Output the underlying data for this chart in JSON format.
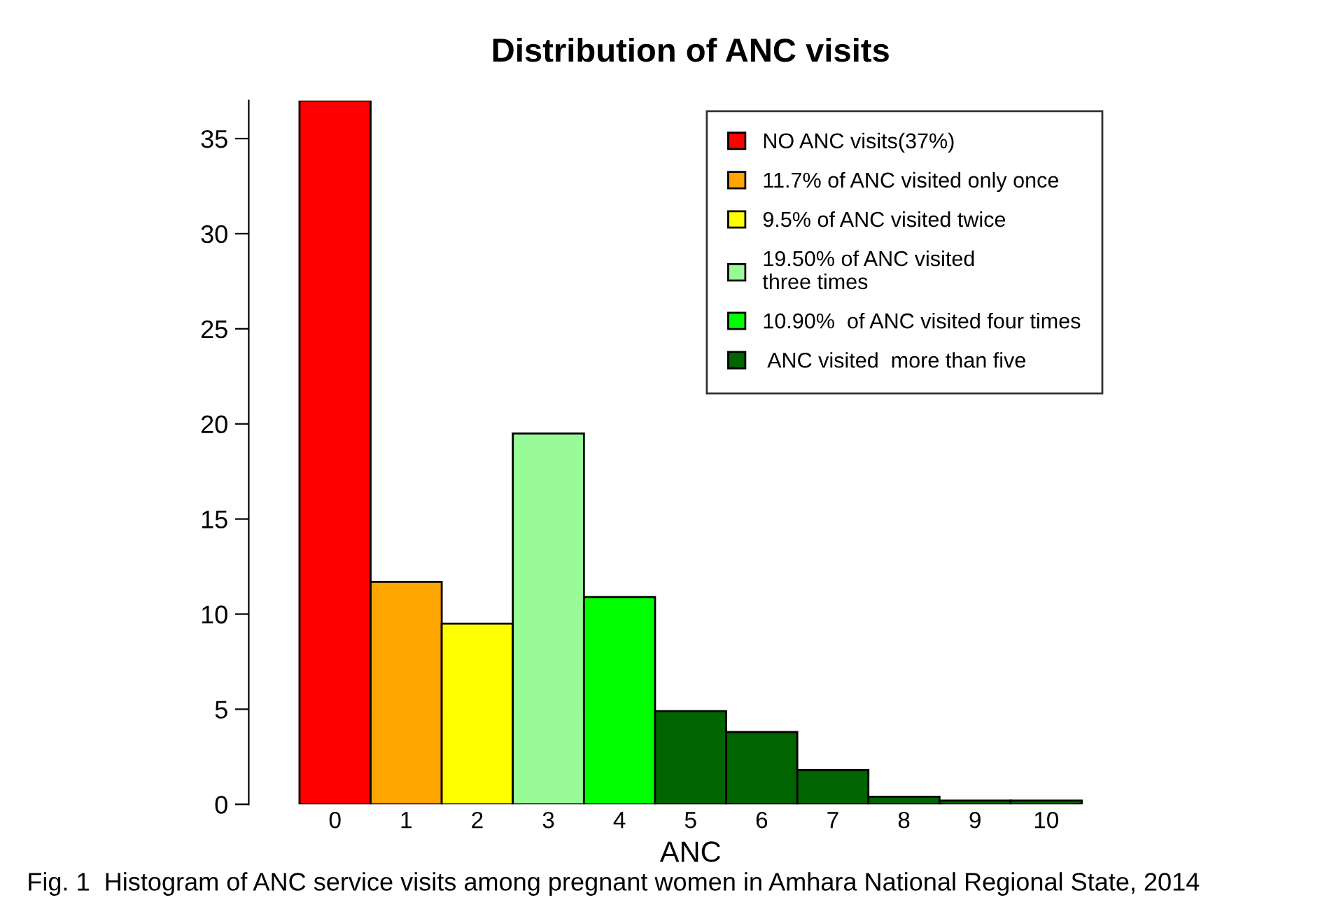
{
  "chart_data": {
    "type": "bar",
    "title": "Distribution of ANC visits",
    "xlabel": "ANC",
    "categories": [
      "0",
      "1",
      "2",
      "3",
      "4",
      "5",
      "6",
      "7",
      "8",
      "9",
      "10"
    ],
    "series": [
      {
        "name": "NO ANC visits(37%)",
        "color": "#ff0000",
        "values": [
          37,
          null,
          null,
          null,
          null,
          null,
          null,
          null,
          null,
          null,
          null
        ]
      },
      {
        "name": "11.7% of ANC visited only once",
        "color": "#ffa500",
        "values": [
          null,
          11.7,
          null,
          null,
          null,
          null,
          null,
          null,
          null,
          null,
          null
        ]
      },
      {
        "name": "9.5% of ANC visited twice",
        "color": "#ffff00",
        "values": [
          null,
          null,
          9.5,
          null,
          null,
          null,
          null,
          null,
          null,
          null,
          null
        ]
      },
      {
        "name": "19.50% of ANC visited\nthree times",
        "color": "#98fb98",
        "values": [
          null,
          null,
          null,
          19.5,
          null,
          null,
          null,
          null,
          null,
          null,
          null
        ]
      },
      {
        "name": "10.90%  of ANC visited four times",
        "color": "#00ff00",
        "values": [
          null,
          null,
          null,
          null,
          10.9,
          null,
          null,
          null,
          null,
          null,
          null
        ]
      },
      {
        "name": " ANC visited  more than five",
        "color": "#006400",
        "values": [
          null,
          null,
          null,
          null,
          null,
          4.9,
          3.8,
          1.8,
          0.4,
          0.2,
          0.2
        ]
      }
    ],
    "ylim": [
      0,
      37
    ],
    "yticks": [
      0,
      5,
      10,
      15,
      20,
      25,
      30,
      35
    ],
    "grid": false,
    "legend": "top right",
    "annotations": [
      "Fig. 1  Histogram of ANC service visits among pregnant women in Amhara National Regional State, 2014"
    ]
  }
}
